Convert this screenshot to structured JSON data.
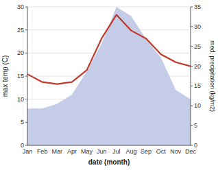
{
  "chart_data": {
    "type": "area",
    "xlabel": "date (month)",
    "ylabel": "max temp (C)",
    "y2label": "med. precipitation (kg/m2)",
    "categories": [
      "Jan",
      "Feb",
      "Mar",
      "Apr",
      "May",
      "Jun",
      "Jul",
      "Aug",
      "Sep",
      "Oct",
      "Nov",
      "Dec"
    ],
    "series": [
      {
        "type": "area",
        "color": "#c5cce8",
        "values": [
          8,
          8,
          9,
          11,
          16,
          22,
          30,
          28,
          23,
          19,
          12,
          10
        ]
      },
      {
        "type": "line",
        "color": "#c0392b",
        "axis": "y2",
        "values": [
          18,
          16,
          15.5,
          16,
          19,
          27,
          33,
          29,
          27,
          23,
          21,
          20
        ]
      }
    ],
    "ylim": [
      0,
      30
    ],
    "yticks": [
      0,
      5,
      10,
      15,
      20,
      25,
      30
    ],
    "y2lim": [
      0,
      35
    ],
    "y2ticks": [
      0,
      5,
      10,
      15,
      20,
      25,
      30,
      35
    ],
    "grid": true
  }
}
